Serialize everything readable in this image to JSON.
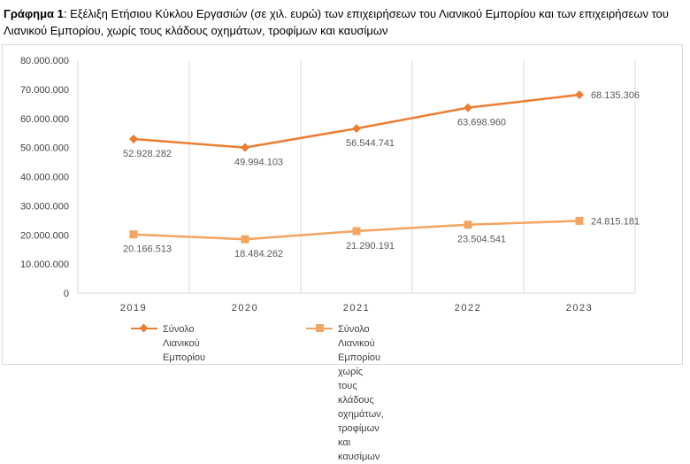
{
  "caption": {
    "label": "Γράφημα 1",
    "text": ": Εξέλιξη Ετήσιου Κύκλου Εργασιών (σε χιλ. ευρώ) των επιχειρήσεων του Λιανικού Εμπορίου και των επιχειρήσεων του Λιανικού Εμπορίου, χωρίς τους κλάδους οχημάτων, τροφίμων και καυσίμων"
  },
  "colors": {
    "series1": "#ED7D31",
    "series2": "#F4A460",
    "grid": "#d9d9d9",
    "axis_text": "#404040",
    "label_text": "#595959"
  },
  "chart_data": {
    "type": "line",
    "title": "",
    "xlabel": "",
    "ylabel": "",
    "categories": [
      "2019",
      "2020",
      "2021",
      "2022",
      "2023"
    ],
    "ylim": [
      0,
      80000000
    ],
    "yticks": [
      0,
      10000000,
      20000000,
      30000000,
      40000000,
      50000000,
      60000000,
      70000000,
      80000000
    ],
    "ytick_labels": [
      "0",
      "10.000.000",
      "20.000.000",
      "30.000.000",
      "40.000.000",
      "50.000.000",
      "60.000.000",
      "70.000.000",
      "80.000.000"
    ],
    "grid": "vertical",
    "legend_position": "bottom",
    "series": [
      {
        "name": "Σύνολο Λιανικού Εμπορίου",
        "marker": "diamond",
        "values": [
          52928282,
          49994103,
          56544741,
          63698960,
          68135306
        ],
        "labels": [
          "52.928.282",
          "49.994.103",
          "56.544.741",
          "63.698.960",
          "68.135.306"
        ]
      },
      {
        "name": "Σύνολο Λιανικού Εμπορίου χωρίς τους κλάδους οχημάτων, τροφίμων και καυσίμων",
        "marker": "square",
        "values": [
          20166513,
          18484262,
          21290191,
          23504541,
          24815181
        ],
        "labels": [
          "20.166.513",
          "18.484.262",
          "21.290.191",
          "23.504.541",
          "24.815.181"
        ]
      }
    ]
  },
  "legend": {
    "item1_label": "Σύνολο Λιανικού Εμπορίου",
    "item2_line1": "Σύνολο Λιανικού Εμπορίου χωρίς τους",
    "item2_line2": "κλάδους οχημάτων, τροφίμων και καυσίμων"
  }
}
